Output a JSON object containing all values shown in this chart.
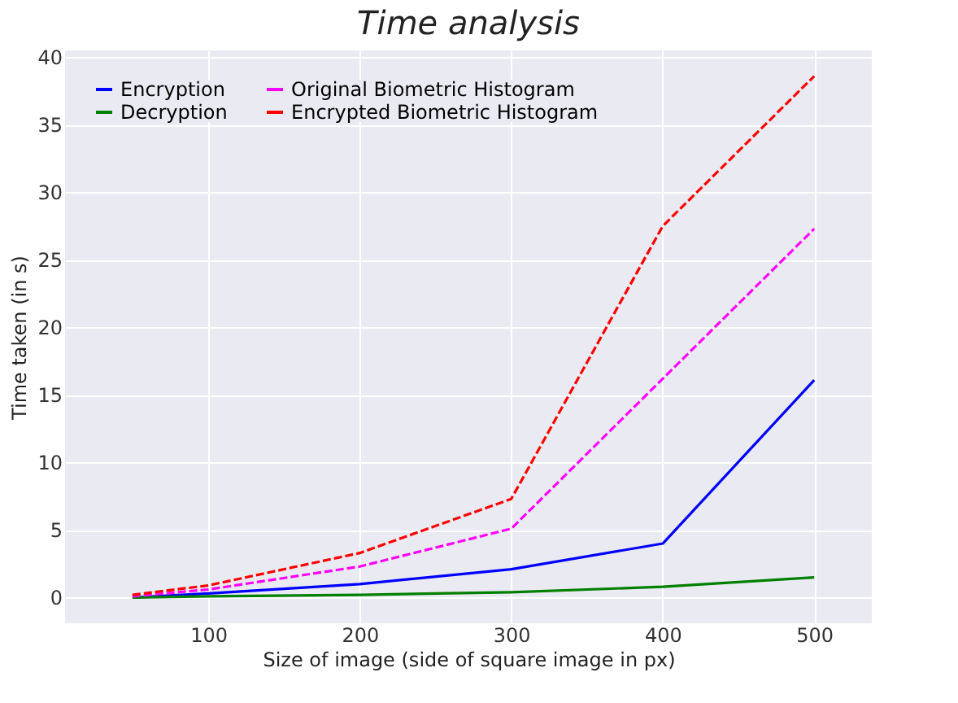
{
  "chart_data": {
    "type": "line",
    "title": "Time analysis",
    "xlabel": "Size of image (side of square image in px)",
    "ylabel": "Time taken (in s)",
    "x": [
      50,
      100,
      200,
      300,
      400,
      500
    ],
    "series": [
      {
        "name": "Encryption",
        "color": "#0000ff",
        "values": [
          0.0,
          0.3,
          1.0,
          2.1,
          4.0,
          16.1
        ],
        "line_style": "solid"
      },
      {
        "name": "Decryption",
        "color": "#008000",
        "values": [
          0.0,
          0.1,
          0.2,
          0.4,
          0.8,
          1.5
        ],
        "line_style": "solid"
      },
      {
        "name": "Original Biometric Histogram",
        "color": "#ff00ff",
        "values": [
          0.1,
          0.6,
          2.3,
          5.1,
          16.2,
          27.3
        ],
        "line_style": "dashed"
      },
      {
        "name": "Encrypted Biometric Histogram",
        "color": "#ff0000",
        "values": [
          0.2,
          0.9,
          3.3,
          7.3,
          27.5,
          38.6
        ],
        "line_style": "dashed"
      }
    ],
    "xlim": [
      5.5,
      538
    ],
    "xticks": [
      100,
      200,
      300,
      400,
      500
    ],
    "ylim": [
      -1.9,
      40.5
    ],
    "yticks": [
      0,
      5,
      10,
      15,
      20,
      25,
      30,
      35,
      40
    ],
    "grid": true,
    "legend": "top left",
    "marker": "none"
  }
}
